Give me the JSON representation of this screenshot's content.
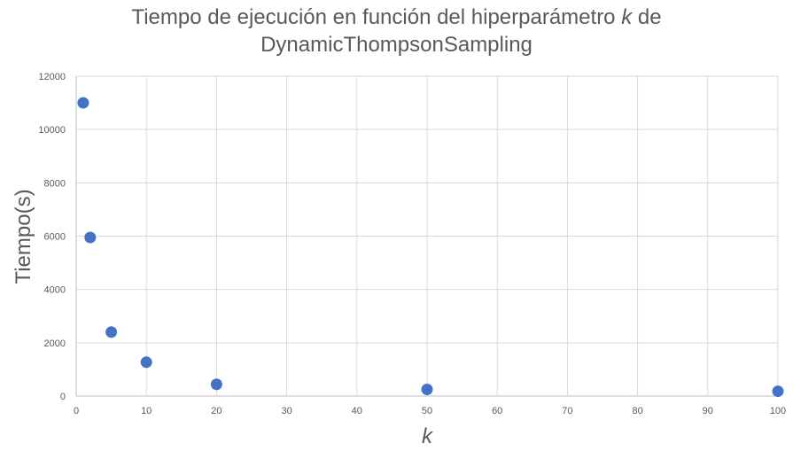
{
  "chart_data": {
    "type": "scatter",
    "title_prefix": "Tiempo de ejecución en función del  hiperparámetro ",
    "title_var": "k",
    "title_suffix": " de",
    "title_line2": "DynamicThompsonSampling",
    "xlabel": "k",
    "ylabel": "Tiempo(s)",
    "xlim": [
      0,
      100
    ],
    "ylim": [
      0,
      12000
    ],
    "xticks": [
      0,
      10,
      20,
      30,
      40,
      50,
      60,
      70,
      80,
      90,
      100
    ],
    "yticks": [
      0,
      2000,
      4000,
      6000,
      8000,
      10000,
      12000
    ],
    "grid": true,
    "marker_color": "#4472C4",
    "series": [
      {
        "x": [
          1,
          2,
          5,
          10,
          20,
          50,
          100
        ],
        "y": [
          11000,
          5950,
          2400,
          1270,
          440,
          250,
          180
        ]
      }
    ]
  }
}
